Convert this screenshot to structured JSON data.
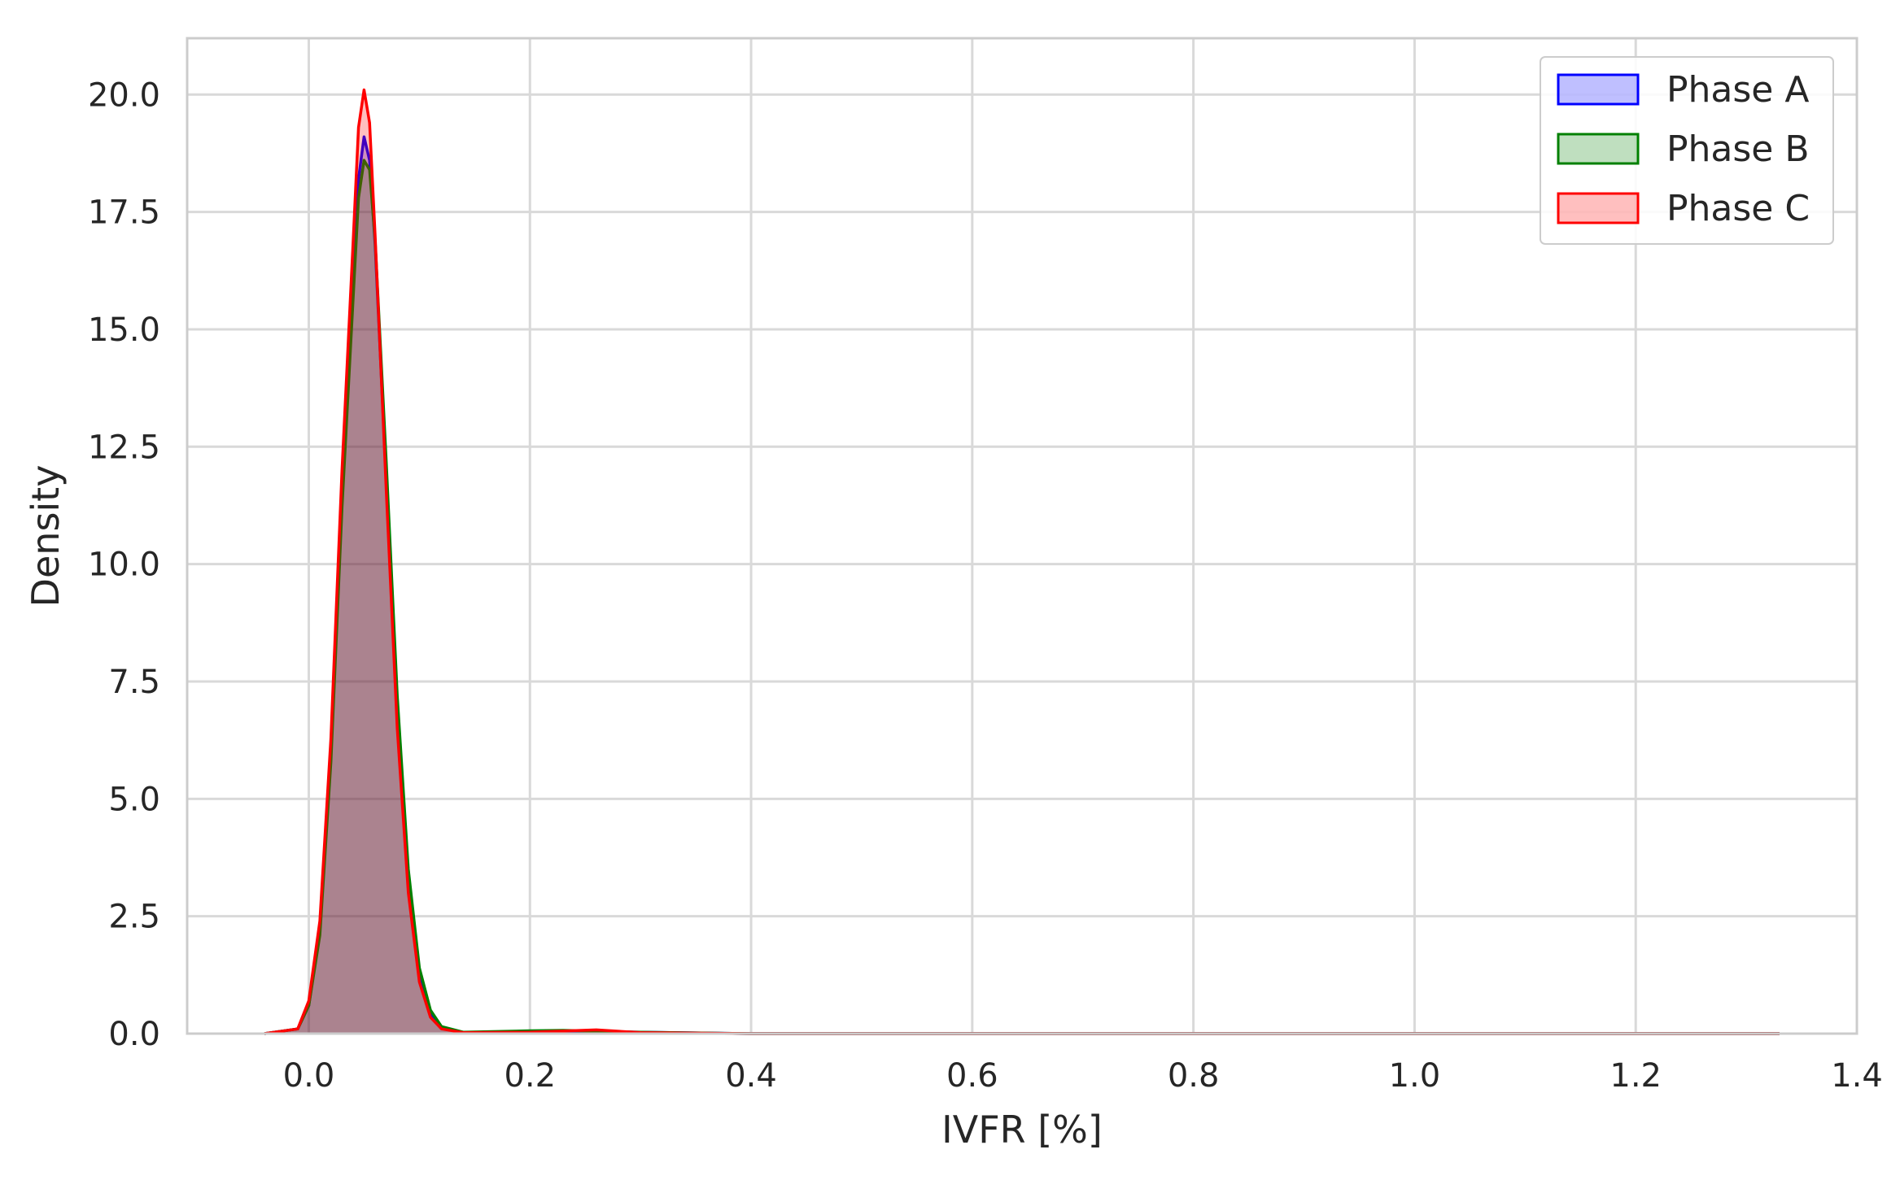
{
  "chart_data": {
    "type": "area",
    "title": "",
    "xlabel": "IVFR [%]",
    "ylabel": "Density",
    "xlim": [
      -0.11,
      1.4
    ],
    "ylim": [
      0,
      21.2
    ],
    "xticks": [
      0.0,
      0.2,
      0.4,
      0.6,
      0.8,
      1.0,
      1.2,
      1.4
    ],
    "xtick_labels": [
      "0.0",
      "0.2",
      "0.4",
      "0.6",
      "0.8",
      "1.0",
      "1.2",
      "1.4"
    ],
    "yticks": [
      0.0,
      2.5,
      5.0,
      7.5,
      10.0,
      12.5,
      15.0,
      17.5,
      20.0
    ],
    "ytick_labels": [
      "0.0",
      "2.5",
      "5.0",
      "7.5",
      "10.0",
      "12.5",
      "15.0",
      "17.5",
      "20.0"
    ],
    "grid": true,
    "legend_position": "top-right",
    "series": [
      {
        "name": "Phase A",
        "color": "#0000ff",
        "fill_opacity": 0.25,
        "x": [
          -0.04,
          -0.01,
          0.0,
          0.01,
          0.02,
          0.03,
          0.04,
          0.045,
          0.05,
          0.055,
          0.06,
          0.07,
          0.08,
          0.09,
          0.1,
          0.11,
          0.12,
          0.14,
          0.2,
          0.24,
          0.3,
          0.4,
          0.6,
          0.8,
          1.0,
          1.2,
          1.33
        ],
        "y": [
          0.0,
          0.1,
          0.6,
          2.2,
          6.0,
          11.5,
          16.0,
          18.2,
          19.1,
          18.6,
          16.8,
          11.8,
          6.8,
          3.2,
          1.2,
          0.4,
          0.12,
          0.02,
          0.04,
          0.05,
          0.03,
          0.0,
          0.0,
          0.0,
          0.0,
          0.0,
          0.0
        ]
      },
      {
        "name": "Phase B",
        "color": "#008000",
        "fill_opacity": 0.25,
        "x": [
          -0.04,
          -0.01,
          0.0,
          0.01,
          0.02,
          0.03,
          0.04,
          0.045,
          0.05,
          0.055,
          0.06,
          0.07,
          0.08,
          0.09,
          0.1,
          0.11,
          0.12,
          0.14,
          0.2,
          0.23,
          0.3,
          0.4,
          0.6,
          0.8,
          1.0,
          1.2,
          1.33
        ],
        "y": [
          0.0,
          0.1,
          0.6,
          2.1,
          5.8,
          11.2,
          15.6,
          17.8,
          18.6,
          18.4,
          16.9,
          12.2,
          7.2,
          3.5,
          1.4,
          0.5,
          0.15,
          0.03,
          0.06,
          0.07,
          0.03,
          0.0,
          0.0,
          0.0,
          0.0,
          0.0,
          0.0
        ]
      },
      {
        "name": "Phase C",
        "color": "#ff0000",
        "fill_opacity": 0.25,
        "x": [
          -0.04,
          -0.01,
          0.0,
          0.01,
          0.02,
          0.03,
          0.04,
          0.045,
          0.05,
          0.055,
          0.06,
          0.07,
          0.08,
          0.09,
          0.1,
          0.11,
          0.12,
          0.14,
          0.2,
          0.26,
          0.3,
          0.4,
          0.6,
          0.8,
          1.0,
          1.2,
          1.33
        ],
        "y": [
          0.0,
          0.1,
          0.7,
          2.4,
          6.3,
          12.0,
          16.8,
          19.3,
          20.1,
          19.4,
          17.0,
          11.6,
          6.5,
          3.0,
          1.1,
          0.35,
          0.1,
          0.02,
          0.03,
          0.08,
          0.02,
          0.0,
          0.0,
          0.0,
          0.0,
          0.0,
          0.0
        ]
      }
    ]
  }
}
